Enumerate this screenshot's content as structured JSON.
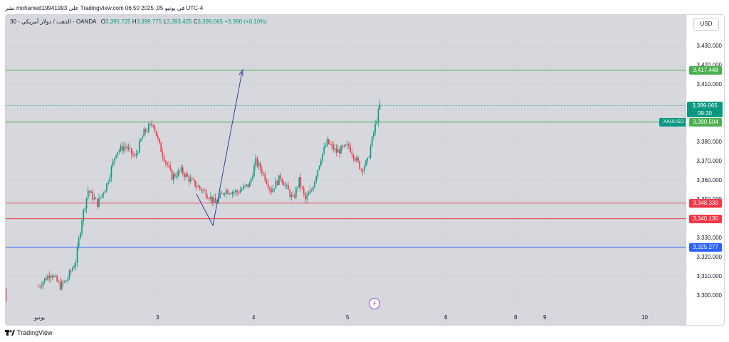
{
  "header": {
    "published_line": "نشر mohamed19941993 على TradingView.com في يونيو 05, 2025 06:50 UTC-4"
  },
  "legend": {
    "symbol": "30 - الذهب / دولار أمريكي - OANDA",
    "o_label": "O",
    "o_value": "3,395.725",
    "h_label": "H",
    "h_value": "3,399.775",
    "l_label": "L",
    "l_value": "3,393.425",
    "c_label": "C",
    "c_value": "3,399.065",
    "change": "+3.390 (+0.10%)"
  },
  "price_axis": {
    "currency_button": "USD",
    "ticks": [
      "3,430.000",
      "3,420.000",
      "3,410.000",
      "3,380.000",
      "3,370.000",
      "3,360.000",
      "3,350.000",
      "3,330.000",
      "3,320.000",
      "3,310.000",
      "3,300.000"
    ],
    "tick_values": [
      3430,
      3420,
      3410,
      3380,
      3370,
      3360,
      3350,
      3330,
      3320,
      3310,
      3300
    ],
    "symbol_tag": "XAUUSD",
    "current_price": "3,399.065",
    "countdown": "09:20"
  },
  "levels": [
    {
      "label": "3,417.448",
      "value": 3417.448,
      "color": "#4caf50"
    },
    {
      "label": "3,390.504",
      "value": 3390.504,
      "color": "#4caf50"
    },
    {
      "label": "3,348.330",
      "value": 3348.33,
      "color": "#f23645"
    },
    {
      "label": "3,340.130",
      "value": 3340.13,
      "color": "#f23645"
    },
    {
      "label": "3,325.277",
      "value": 3325.277,
      "color": "#2962ff"
    }
  ],
  "time_axis": {
    "labels": [
      "يونيو",
      "3",
      "4",
      "5",
      "6",
      "8",
      "9",
      "10"
    ]
  },
  "colors": {
    "up": "#089981",
    "down": "#f23645",
    "arrow": "#2a2e8f"
  },
  "branding": {
    "name": "TradingView"
  },
  "icons": {
    "event": "lightning-icon",
    "logo": "tradingview-logo-icon"
  }
}
